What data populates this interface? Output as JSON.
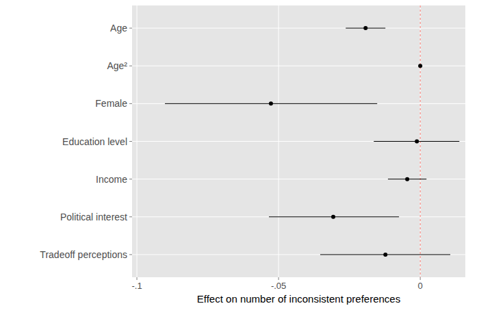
{
  "chart_data": {
    "type": "errorbar",
    "orientation": "horizontal",
    "x_label": "Effect on number of inconsistent preferences",
    "categories": [
      "Age",
      "Age²",
      "Female",
      "Education level",
      "Income",
      "Political interest",
      "Tradeoff perceptions"
    ],
    "values": [
      -0.0193,
      0,
      -0.0527,
      -0.0012,
      -0.0046,
      -0.0307,
      -0.0123
    ],
    "lower": [
      -0.0263,
      -0.0002,
      -0.0901,
      -0.0164,
      -0.0114,
      -0.0534,
      -0.0353
    ],
    "upper": [
      -0.0123,
      0.0002,
      -0.0152,
      0.0138,
      0.0022,
      -0.0075,
      0.0106
    ],
    "xlim": [
      -0.1017,
      0.0159
    ],
    "xticks": [
      {
        "value": -0.1,
        "label": "-.1"
      },
      {
        "value": -0.05,
        "label": "-.05"
      },
      0
    ],
    "reference_line": 0,
    "grid": true,
    "color": "#000000"
  }
}
